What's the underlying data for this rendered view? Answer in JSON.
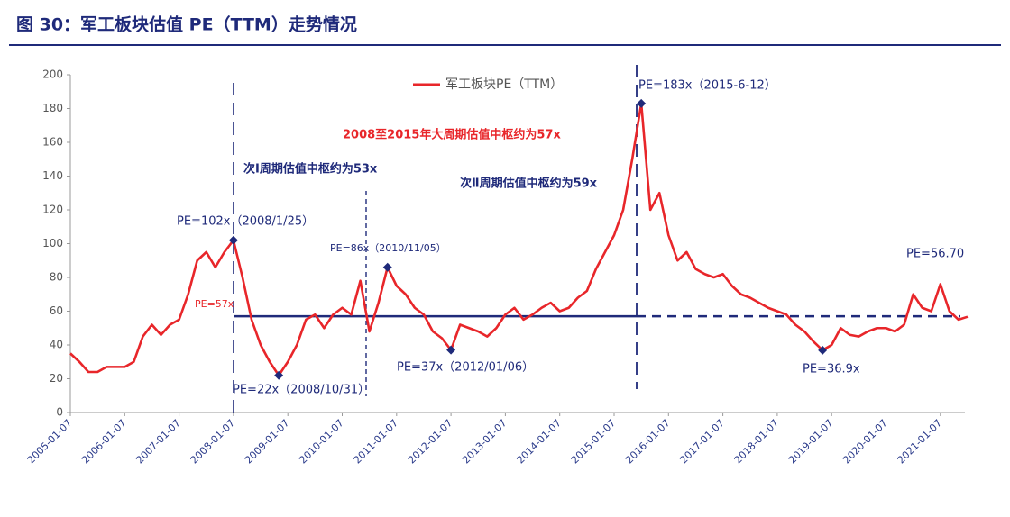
{
  "chart_data": {
    "type": "line",
    "title": "图 30：军工板块估值 PE（TTM）走势情况",
    "categories": [
      "2005-01-07",
      null,
      null,
      null,
      null,
      null,
      "2006-01-07",
      null,
      null,
      null,
      null,
      null,
      "2007-01-07",
      null,
      null,
      null,
      null,
      null,
      "2008-01-07",
      null,
      null,
      null,
      null,
      null,
      "2009-01-07",
      null,
      null,
      null,
      null,
      null,
      "2010-01-07",
      null,
      null,
      null,
      null,
      null,
      "2011-01-07",
      null,
      null,
      null,
      null,
      null,
      "2012-01-07",
      null,
      null,
      null,
      null,
      null,
      "2013-01-07",
      null,
      null,
      null,
      null,
      null,
      "2014-01-07",
      null,
      null,
      null,
      null,
      null,
      "2015-01-07",
      null,
      null,
      null,
      null,
      null,
      "2016-01-07",
      null,
      null,
      null,
      null,
      null,
      "2017-01-07",
      null,
      null,
      null,
      null,
      null,
      "2018-01-07",
      null,
      null,
      null,
      null,
      null,
      "2019-01-07",
      null,
      null,
      null,
      null,
      null,
      "2020-01-07",
      null,
      null,
      null,
      null,
      null,
      "2021-01-07",
      null,
      null,
      null
    ],
    "series": [
      {
        "name": "军工板块PE（TTM）",
        "color": "#e8262a",
        "values": [
          35,
          30,
          24,
          24,
          27,
          27,
          27,
          30,
          45,
          52,
          46,
          52,
          55,
          70,
          90,
          95,
          86,
          95,
          102,
          80,
          55,
          40,
          30,
          22,
          30,
          40,
          55,
          58,
          50,
          58,
          62,
          58,
          78,
          48,
          65,
          86,
          75,
          70,
          62,
          58,
          48,
          44,
          37,
          52,
          50,
          48,
          45,
          50,
          58,
          62,
          55,
          58,
          62,
          65,
          60,
          62,
          68,
          72,
          85,
          95,
          105,
          120,
          150,
          183,
          120,
          130,
          105,
          90,
          95,
          85,
          82,
          80,
          82,
          75,
          70,
          68,
          65,
          62,
          60,
          58,
          52,
          48,
          42,
          36.9,
          40,
          50,
          46,
          45,
          48,
          50,
          50,
          48,
          52,
          70,
          62,
          60,
          76,
          60,
          55,
          56.7
        ]
      }
    ],
    "center_value": 57,
    "ylim": [
      0,
      200
    ],
    "yticks": [
      0,
      20,
      40,
      60,
      80,
      100,
      120,
      140,
      160,
      180,
      200
    ],
    "annotations": [
      "PE=183x（2015-6-12）",
      "2008至2015年大周期估值中枢约为57x",
      "次Ⅰ周期估值中枢约为53x",
      "次Ⅱ周期估值中枢约为59x",
      "PE=102x（2008/1/25）",
      "PE=86x（2010/11/05）",
      "PE=57x",
      "PE=22x（2008/10/31）",
      "PE=37x（2012/01/06）",
      "PE=36.9x",
      "PE=56.70"
    ]
  }
}
